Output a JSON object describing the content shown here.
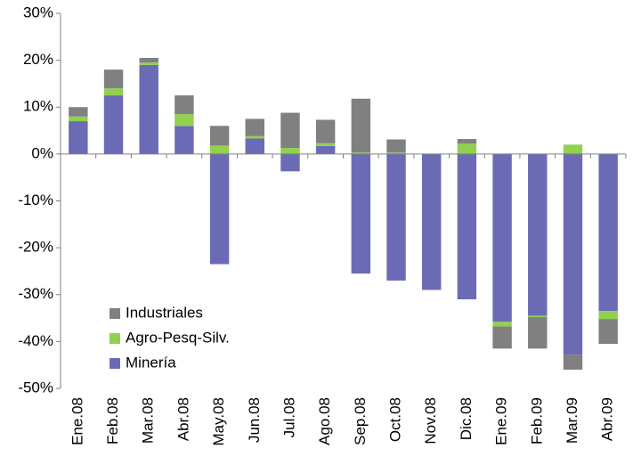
{
  "chart_data": {
    "type": "stacked_bar",
    "categories": [
      "Ene.08",
      "Feb.08",
      "Mar.08",
      "Abr.08",
      "May.08",
      "Jun.08",
      "Jul.08",
      "Ago.08",
      "Sep.08",
      "Oct.08",
      "Nov.08",
      "Dic.08",
      "Ene.09",
      "Feb.09",
      "Mar.09",
      "Abr.09"
    ],
    "series": [
      {
        "name": "Minería",
        "color": "#6b6bb5",
        "values": [
          7,
          12.5,
          19,
          6,
          -23.5,
          3.3,
          -3.7,
          1.7,
          -25.5,
          -27,
          -29,
          -31,
          -35.8,
          -34.5,
          -42.8,
          -33.5
        ]
      },
      {
        "name": "Agro-Pesq-Silv.",
        "color": "#92d050",
        "values": [
          1,
          1.5,
          0.5,
          2.5,
          1.8,
          0.5,
          1.3,
          0.6,
          0.3,
          0.3,
          0,
          2.2,
          -1,
          -0.3,
          2,
          -1.7
        ]
      },
      {
        "name": "Industriales",
        "color": "#808080",
        "values": [
          2,
          4,
          1,
          4,
          4.2,
          3.7,
          7.5,
          5,
          11.5,
          2.8,
          0,
          1,
          -4.7,
          -6.7,
          -3.2,
          -5.3
        ]
      }
    ],
    "ylim": [
      -50,
      30
    ],
    "yticks": [
      {
        "value": -50,
        "label": "-50%"
      },
      {
        "value": -40,
        "label": "-40%"
      },
      {
        "value": -30,
        "label": "-30%"
      },
      {
        "value": -20,
        "label": "-20%"
      },
      {
        "value": -10,
        "label": "-10%"
      },
      {
        "value": 0,
        "label": "0%"
      },
      {
        "value": 10,
        "label": "10%"
      },
      {
        "value": 20,
        "label": "20%"
      },
      {
        "value": 30,
        "label": "30%"
      }
    ],
    "legend": "lower left"
  }
}
